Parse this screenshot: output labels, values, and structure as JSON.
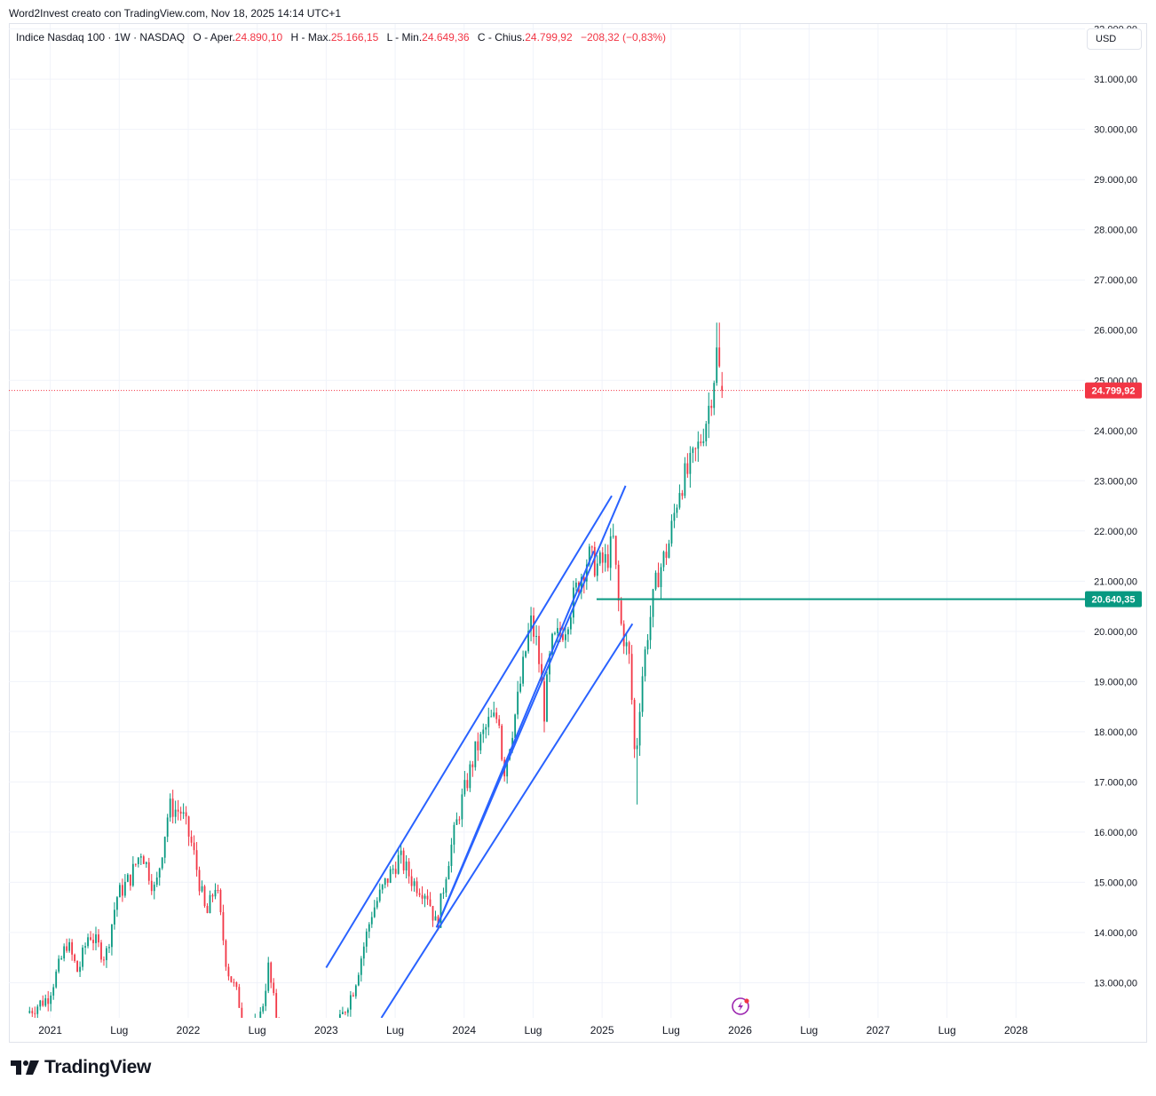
{
  "header": {
    "caption": "Word2Invest creato con TradingView.com, Nov 18, 2025 14:14 UTC+1"
  },
  "legend": {
    "symbol": "Indice Nasdaq 100 · 1W · NASDAQ",
    "o_label": "O - Aper.",
    "o_value": "24.890,10",
    "h_label": "H - Max.",
    "h_value": "25.166,15",
    "l_label": "L - Min.",
    "l_value": "24.649,36",
    "c_label": "C - Chius.",
    "c_value": "24.799,92",
    "change": "−208,32 (−0,83%)"
  },
  "currency_button": "USD",
  "brand": "TradingView",
  "colors": {
    "up": "#089981",
    "down": "#f23645",
    "trendline": "#2962ff",
    "level": "#089981",
    "grid": "#f0f3fa"
  },
  "chart_data": {
    "type": "candlestick",
    "symbol": "Indice Nasdaq 100",
    "interval": "1W",
    "exchange": "NASDAQ",
    "grid": true,
    "y_axis": {
      "ylim": [
        12300,
        32100
      ],
      "ticks": [
        13000,
        14000,
        15000,
        16000,
        17000,
        18000,
        19000,
        20000,
        21000,
        22000,
        23000,
        24000,
        25000,
        26000,
        27000,
        28000,
        29000,
        30000,
        31000,
        32000
      ],
      "tick_labels": [
        "13.000,00",
        "14.000,00",
        "15.000,00",
        "16.000,00",
        "17.000,00",
        "18.000,00",
        "19.000,00",
        "20.000,00",
        "21.000,00",
        "22.000,00",
        "23.000,00",
        "24.000,00",
        "25.000,00",
        "26.000,00",
        "27.000,00",
        "28.000,00",
        "29.000,00",
        "30.000,00",
        "31.000,00",
        "32.000,00"
      ]
    },
    "x_axis": {
      "xlim": [
        2020.7,
        2028.5
      ],
      "ticks": [
        2021,
        2021.5,
        2022,
        2022.5,
        2023,
        2023.5,
        2024,
        2024.5,
        2025,
        2025.5,
        2026,
        2026.5,
        2027,
        2027.5,
        2028
      ],
      "tick_labels": [
        "2021",
        "Lug",
        "2022",
        "Lug",
        "2023",
        "Lug",
        "2024",
        "Lug",
        "2025",
        "Lug",
        "2026",
        "Lug",
        "2027",
        "Lug",
        "2028"
      ]
    },
    "price_anchors": [
      [
        2020.85,
        12400
      ],
      [
        2021.0,
        12700
      ],
      [
        2021.08,
        13300
      ],
      [
        2021.14,
        13800
      ],
      [
        2021.22,
        13200
      ],
      [
        2021.3,
        14000
      ],
      [
        2021.42,
        13500
      ],
      [
        2021.5,
        14700
      ],
      [
        2021.6,
        15100
      ],
      [
        2021.68,
        15650
      ],
      [
        2021.78,
        14800
      ],
      [
        2021.88,
        16500
      ],
      [
        2021.97,
        16400
      ],
      [
        2022.05,
        15700
      ],
      [
        2022.15,
        14300
      ],
      [
        2022.22,
        15000
      ],
      [
        2022.3,
        13300
      ],
      [
        2022.38,
        12700
      ],
      [
        2022.45,
        11800
      ],
      [
        2022.55,
        12400
      ],
      [
        2022.6,
        13300
      ],
      [
        2022.67,
        12100
      ],
      [
        2022.78,
        11000
      ],
      [
        2022.9,
        11600
      ],
      [
        2023.0,
        10900
      ],
      [
        2023.1,
        12100
      ],
      [
        2023.22,
        12900
      ],
      [
        2023.35,
        14400
      ],
      [
        2023.45,
        15000
      ],
      [
        2023.55,
        15500
      ],
      [
        2023.65,
        15000
      ],
      [
        2023.75,
        14800
      ],
      [
        2023.82,
        14100
      ],
      [
        2023.9,
        15400
      ],
      [
        2024.0,
        16600
      ],
      [
        2024.1,
        17600
      ],
      [
        2024.2,
        18200
      ],
      [
        2024.28,
        18300
      ],
      [
        2024.3,
        17100
      ],
      [
        2024.4,
        18500
      ],
      [
        2024.5,
        20200
      ],
      [
        2024.55,
        19700
      ],
      [
        2024.6,
        18400
      ],
      [
        2024.65,
        19700
      ],
      [
        2024.75,
        20100
      ],
      [
        2024.85,
        21000
      ],
      [
        2024.92,
        21500
      ],
      [
        2024.98,
        21300
      ],
      [
        2025.05,
        21400
      ],
      [
        2025.1,
        21800
      ],
      [
        2025.15,
        20200
      ],
      [
        2025.22,
        19400
      ],
      [
        2025.26,
        17300
      ],
      [
        2025.3,
        18900
      ],
      [
        2025.35,
        20000
      ],
      [
        2025.42,
        21100
      ],
      [
        2025.5,
        21700
      ],
      [
        2025.58,
        22900
      ],
      [
        2025.65,
        23200
      ],
      [
        2025.72,
        23700
      ],
      [
        2025.78,
        24300
      ],
      [
        2025.82,
        24900
      ],
      [
        2025.84,
        25300
      ],
      [
        2025.86,
        25800
      ],
      [
        2025.875,
        24800
      ]
    ],
    "last_candle": {
      "open": 24890.1,
      "high": 25166.15,
      "low": 24649.36,
      "close": 24799.92
    },
    "series_high": 26150,
    "series_low_2025": 16550,
    "last_price_label": "24.799,92",
    "horizontal_level": {
      "value": 20640.35,
      "label": "20.640,35",
      "x_start": 2024.96
    },
    "trendlines": [
      {
        "x1": 2023.0,
        "y1": 13300,
        "x2": 2025.07,
        "y2": 22700
      },
      {
        "x1": 2023.8,
        "y1": 14100,
        "x2": 2025.17,
        "y2": 22900
      },
      {
        "x1": 2023.8,
        "y1": 14100,
        "x2": 2024.94,
        "y2": 21600
      },
      {
        "x1": 2023.4,
        "y1": 12300,
        "x2": 2025.22,
        "y2": 20150
      }
    ]
  }
}
